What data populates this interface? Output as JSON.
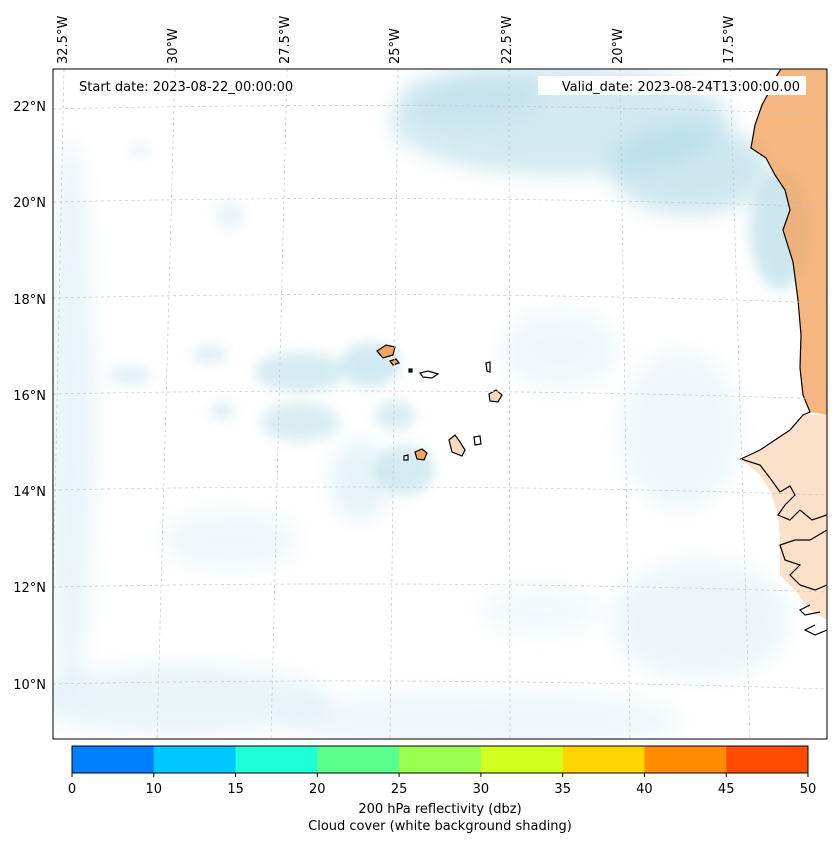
{
  "map": {
    "start_label": "Start date: 2023-08-22_00:00:00",
    "valid_label": "Valid_date: 2023-08-24T13:00:00.00",
    "lon_labels": [
      "32.5°W",
      "30°W",
      "27.5°W",
      "25°W",
      "22.5°W",
      "20°W",
      "17.5°W"
    ],
    "lat_labels": [
      "22°N",
      "20°N",
      "18°N",
      "16°N",
      "14°N",
      "12°N",
      "10°N"
    ],
    "colorbar": {
      "ticks": [
        "0",
        "10",
        "15",
        "20",
        "25",
        "30",
        "35",
        "40",
        "45",
        "50"
      ],
      "colors": [
        "#0080ff",
        "#00c8ff",
        "#1effd8",
        "#5aff8c",
        "#9bff50",
        "#d2ff1e",
        "#ffd500",
        "#ff8c00",
        "#ff4b00"
      ],
      "title": "200 hPa reflectivity (dbz)",
      "subtitle": "Cloud cover (white background shading)"
    },
    "colors": {
      "cloud": "#add8e6",
      "land": "#f4a460",
      "land_light": "#fbd9bd",
      "coastline": "#000000"
    }
  }
}
